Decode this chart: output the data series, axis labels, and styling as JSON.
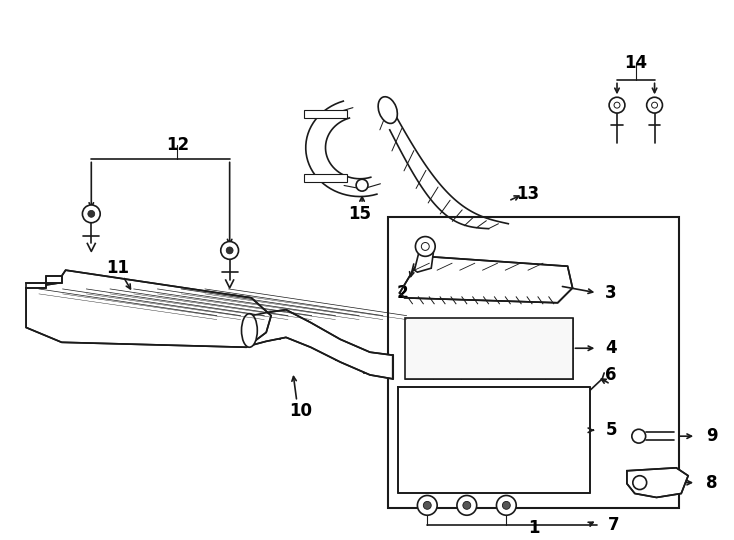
{
  "bg_color": "#ffffff",
  "line_color": "#1a1a1a",
  "label_fontsize": 12,
  "figsize": [
    7.34,
    5.4
  ],
  "dpi": 100
}
